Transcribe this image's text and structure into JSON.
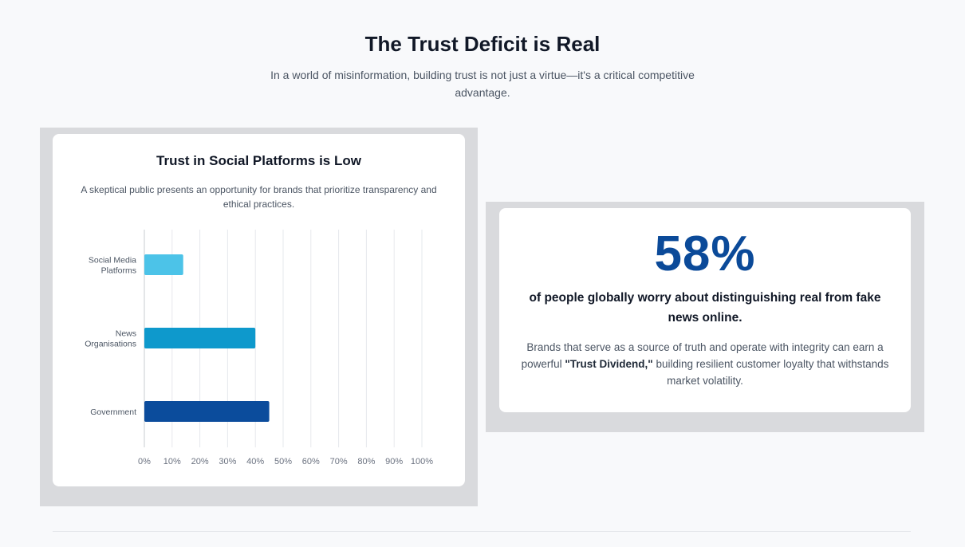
{
  "header": {
    "title": "The Trust Deficit is Real",
    "subtitle": "In a world of misinformation, building trust is not just a virtue—it's a critical competitive advantage."
  },
  "chart_card": {
    "title": "Trust in Social Platforms is Low",
    "subtitle": "A skeptical public presents an opportunity for brands that prioritize transparency and ethical practices."
  },
  "chart_data": {
    "type": "bar",
    "orientation": "horizontal",
    "title": "Trust in Social Platforms is Low",
    "categories": [
      [
        "Social Media",
        "Platforms"
      ],
      [
        "News",
        "Organisations"
      ],
      [
        "Government"
      ]
    ],
    "values": [
      14,
      40,
      45
    ],
    "bar_colors": [
      "#4cc3e8",
      "#0e99cc",
      "#0b4c9c"
    ],
    "x_ticks": [
      "0%",
      "10%",
      "20%",
      "30%",
      "40%",
      "50%",
      "60%",
      "70%",
      "80%",
      "90%",
      "100%"
    ],
    "xlim": [
      0,
      100
    ],
    "grid": true,
    "legend": "none"
  },
  "stat_card": {
    "value": "58%",
    "headline": "of people globally worry about distinguishing real from fake news online.",
    "body_before": "Brands that serve as a source of truth and operate with integrity can earn a powerful ",
    "body_emphasis": "\"Trust Dividend,\"",
    "body_after": " building resilient customer loyalty that withstands market volatility."
  },
  "colors": {
    "accent": "#0b4a99",
    "background": "#f8f9fb",
    "frame": "#d9dadd"
  }
}
